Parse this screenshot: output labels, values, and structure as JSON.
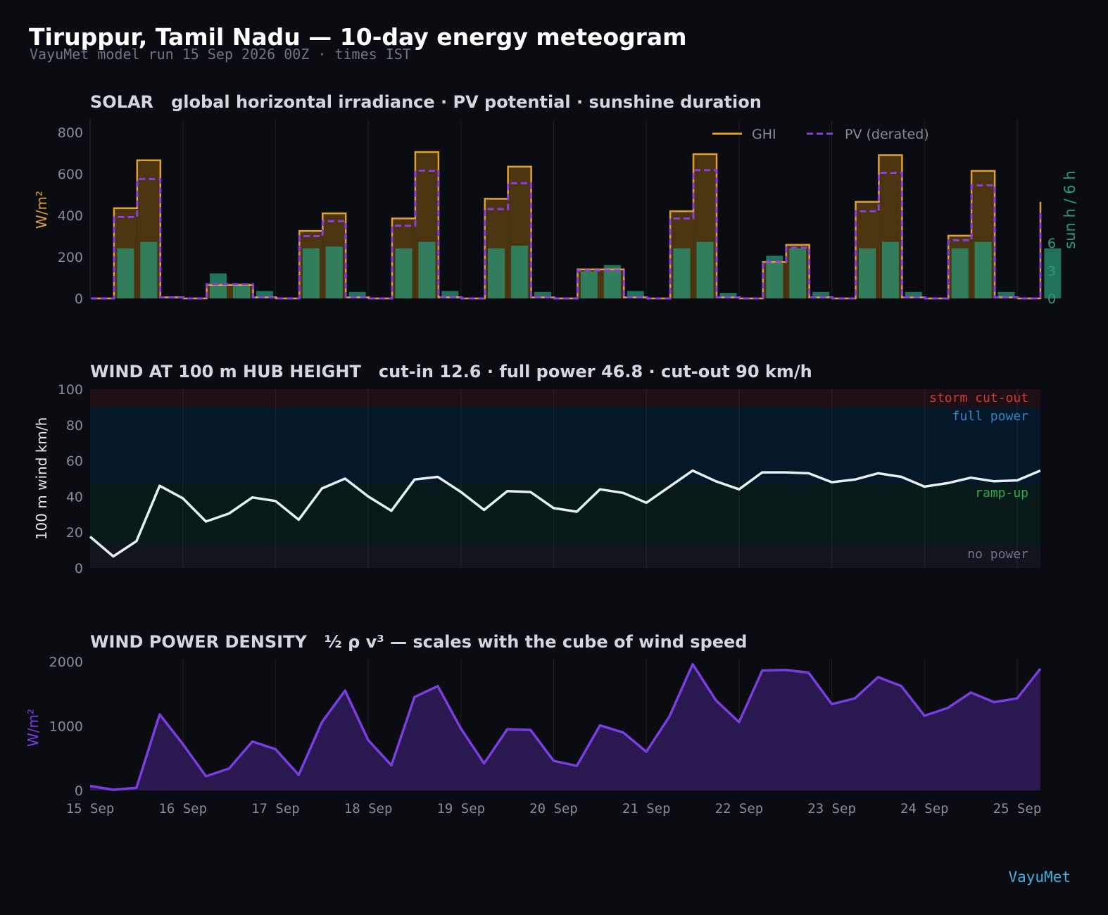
{
  "header": {
    "title": "Tiruppur, Tamil Nadu — 10-day energy meteogram",
    "subtitle": "VayuMet model run 15 Sep 2026 00Z · times IST"
  },
  "brand": "VayuMet",
  "colors": {
    "background": "#0a0c11",
    "ghi": "#e0a030",
    "ghi_fill": "#4a3510",
    "pv": "#8a3ee0",
    "sun": "#2a9a7a",
    "wind_line": "#e6f0f2",
    "density": "#7a3ee0",
    "density_fill": "#2a1850",
    "zone_storm": "#1e0f14",
    "zone_full": "#04182a",
    "zone_ramp": "#08191a",
    "zone_none": "#12151d"
  },
  "chart_data": [
    {
      "type": "bar",
      "title": "SOLAR   global horizontal irradiance · PV potential · sunshine duration",
      "ylabel": "W/m²",
      "y2label": "sun h / 6 h",
      "ylim": [
        0,
        850
      ],
      "y_ticks": [
        "0",
        "200",
        "400",
        "600",
        "800"
      ],
      "y2lim": [
        0,
        19
      ],
      "y2_ticks": [
        "0",
        "3",
        "6"
      ],
      "x_tick_labels": [
        "15 Sep",
        "16 Sep",
        "17 Sep",
        "18 Sep",
        "19 Sep",
        "20 Sep",
        "21 Sep",
        "22 Sep",
        "23 Sep",
        "24 Sep",
        "25 Sep"
      ],
      "step_hours": 6,
      "legend": [
        "GHI",
        "PV (derated)"
      ],
      "legend_position": "top-right",
      "grid": "vertical",
      "series": [
        {
          "name": "GHI",
          "values": [
            0,
            435,
            665,
            5,
            0,
            65,
            65,
            5,
            0,
            325,
            410,
            5,
            0,
            385,
            705,
            5,
            0,
            480,
            635,
            5,
            0,
            140,
            140,
            5,
            0,
            420,
            695,
            5,
            0,
            175,
            258,
            5,
            0,
            465,
            690,
            5,
            0,
            302,
            614,
            5,
            0,
            465
          ]
        },
        {
          "name": "PV (derated)",
          "values": [
            0,
            392,
            575,
            5,
            0,
            68,
            68,
            5,
            0,
            300,
            372,
            5,
            0,
            350,
            615,
            5,
            0,
            430,
            555,
            5,
            0,
            135,
            135,
            5,
            0,
            385,
            618,
            5,
            0,
            178,
            245,
            5,
            0,
            420,
            605,
            5,
            0,
            280,
            545,
            5,
            0,
            415
          ]
        },
        {
          "name": "sunshine",
          "values": [
            0,
            5.4,
            6.1,
            0.2,
            0,
            2.7,
            1.6,
            0.8,
            0,
            5.4,
            5.6,
            0.7,
            0,
            5.4,
            6.1,
            0.8,
            0,
            5.4,
            5.7,
            0.7,
            0,
            2.9,
            3.6,
            0.8,
            0,
            5.4,
            6.1,
            0.6,
            0,
            4.6,
            5.4,
            0.7,
            0,
            5.4,
            6.1,
            0.7,
            0,
            5.4,
            6.1,
            0.7,
            0,
            5.4
          ]
        }
      ]
    },
    {
      "type": "line",
      "title": "WIND AT 100 m HUB HEIGHT   cut-in 12.6 · full power 46.8 · cut-out 90 km/h",
      "ylabel": "100 m wind km/h",
      "ylim": [
        0,
        100
      ],
      "y_ticks": [
        "0",
        "20",
        "40",
        "60",
        "80",
        "100"
      ],
      "step_hours": 6,
      "grid": "vertical",
      "bands": [
        {
          "label": "no power",
          "from": 0,
          "to": 12.6
        },
        {
          "label": "ramp-up",
          "from": 12.6,
          "to": 46.8
        },
        {
          "label": "full power",
          "from": 46.8,
          "to": 90
        },
        {
          "label": "storm cut-out",
          "from": 90,
          "to": 100
        }
      ],
      "series": [
        {
          "values": [
            17.5,
            6.5,
            15,
            46,
            39,
            26,
            30.5,
            39.5,
            37.5,
            27,
            44.5,
            50,
            40,
            32,
            49.5,
            51,
            42.5,
            32.5,
            43,
            42.5,
            33.5,
            31.5,
            44,
            42,
            36.5,
            45.5,
            54.5,
            48.5,
            44,
            53.5,
            53.5,
            53,
            48,
            49.5,
            53,
            51,
            45.5,
            47.5,
            50.5,
            48.5,
            49,
            54.5
          ]
        }
      ]
    },
    {
      "type": "area",
      "title": "WIND POWER DENSITY   ½ ρ v³ — scales with the cube of wind speed",
      "ylabel": "W/m²",
      "ylim": [
        0,
        2050
      ],
      "y_ticks": [
        "0",
        "1000",
        "2000"
      ],
      "x_tick_labels": [
        "15 Sep",
        "16 Sep",
        "17 Sep",
        "18 Sep",
        "19 Sep",
        "20 Sep",
        "21 Sep",
        "22 Sep",
        "23 Sep",
        "24 Sep",
        "25 Sep"
      ],
      "step_hours": 6,
      "grid": "vertical",
      "series": [
        {
          "values": [
            70,
            10,
            40,
            1180,
            720,
            220,
            340,
            760,
            640,
            240,
            1060,
            1550,
            780,
            390,
            1450,
            1620,
            960,
            420,
            950,
            940,
            460,
            380,
            1010,
            900,
            600,
            1150,
            1960,
            1400,
            1060,
            1860,
            1870,
            1830,
            1340,
            1430,
            1760,
            1620,
            1160,
            1280,
            1520,
            1370,
            1430,
            1890
          ]
        }
      ]
    }
  ]
}
